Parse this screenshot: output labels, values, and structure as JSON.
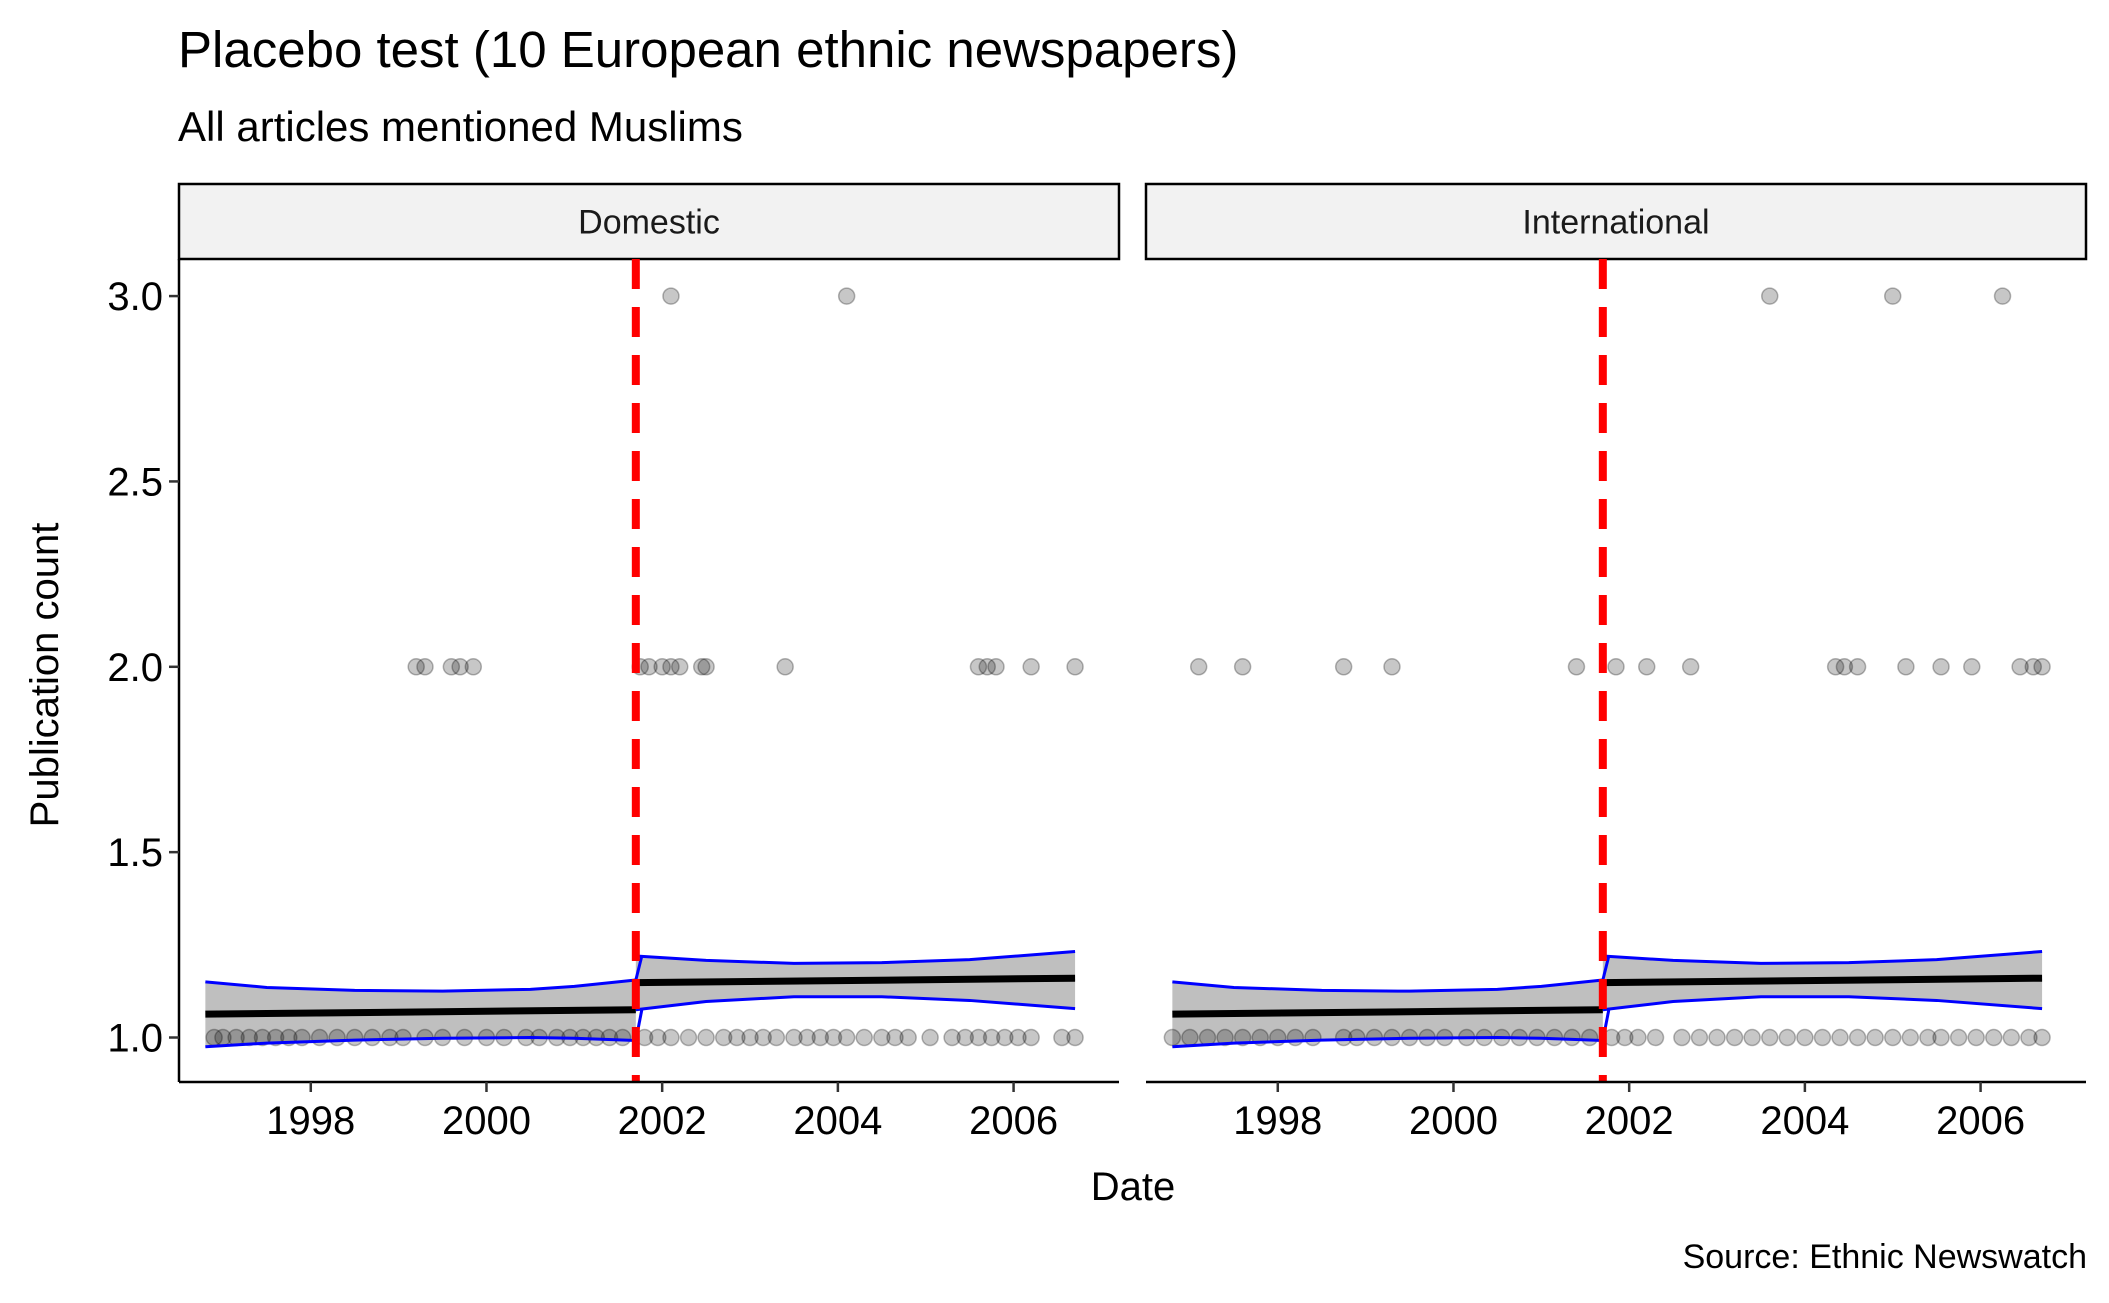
{
  "chart_data": {
    "type": "scatter",
    "title": "Placebo test (10 European ethnic newspapers)",
    "subtitle": "All articles mentioned Muslims",
    "caption": "Source: Ethnic Newswatch",
    "xlabel": "Date",
    "ylabel": "Publication count",
    "xlim": [
      1996.5,
      2007.2
    ],
    "ylim": [
      0.88,
      3.1
    ],
    "x_ticks": [
      1998,
      2000,
      2002,
      2004,
      2006
    ],
    "y_ticks": [
      1.0,
      1.5,
      2.0,
      2.5,
      3.0
    ],
    "y_tick_labels": [
      "1.0",
      "1.5",
      "2.0",
      "2.5",
      "3.0"
    ],
    "cutoff_x": 2001.7,
    "colors": {
      "points": "#000000",
      "cutoff_line": "#ff0000",
      "ribbon_fill": "#bfbfbf",
      "ribbon_border": "#0000ff",
      "fit_line": "#000000",
      "strip_fill": "#f2f2f2"
    },
    "panels": [
      {
        "name": "Domestic",
        "points": [
          {
            "x": 2002.1,
            "y": 3
          },
          {
            "x": 2004.1,
            "y": 3
          },
          {
            "x": 1999.2,
            "y": 2
          },
          {
            "x": 1999.3,
            "y": 2
          },
          {
            "x": 1999.6,
            "y": 2
          },
          {
            "x": 1999.7,
            "y": 2
          },
          {
            "x": 1999.85,
            "y": 2
          },
          {
            "x": 2001.75,
            "y": 2
          },
          {
            "x": 2001.85,
            "y": 2
          },
          {
            "x": 2002.0,
            "y": 2
          },
          {
            "x": 2002.1,
            "y": 2
          },
          {
            "x": 2002.2,
            "y": 2
          },
          {
            "x": 2002.45,
            "y": 2
          },
          {
            "x": 2002.5,
            "y": 2
          },
          {
            "x": 2003.4,
            "y": 2
          },
          {
            "x": 2005.6,
            "y": 2
          },
          {
            "x": 2005.7,
            "y": 2
          },
          {
            "x": 2005.8,
            "y": 2
          },
          {
            "x": 2006.2,
            "y": 2
          },
          {
            "x": 2006.7,
            "y": 2
          },
          {
            "x": 1996.9,
            "y": 1
          },
          {
            "x": 1997.0,
            "y": 1
          },
          {
            "x": 1997.15,
            "y": 1
          },
          {
            "x": 1997.3,
            "y": 1
          },
          {
            "x": 1997.45,
            "y": 1
          },
          {
            "x": 1997.6,
            "y": 1
          },
          {
            "x": 1997.75,
            "y": 1
          },
          {
            "x": 1997.9,
            "y": 1
          },
          {
            "x": 1998.1,
            "y": 1
          },
          {
            "x": 1998.3,
            "y": 1
          },
          {
            "x": 1998.5,
            "y": 1
          },
          {
            "x": 1998.7,
            "y": 1
          },
          {
            "x": 1998.9,
            "y": 1
          },
          {
            "x": 1999.05,
            "y": 1
          },
          {
            "x": 1999.3,
            "y": 1
          },
          {
            "x": 1999.5,
            "y": 1
          },
          {
            "x": 1999.75,
            "y": 1
          },
          {
            "x": 2000.0,
            "y": 1
          },
          {
            "x": 2000.2,
            "y": 1
          },
          {
            "x": 2000.45,
            "y": 1
          },
          {
            "x": 2000.6,
            "y": 1
          },
          {
            "x": 2000.8,
            "y": 1
          },
          {
            "x": 2000.95,
            "y": 1
          },
          {
            "x": 2001.1,
            "y": 1
          },
          {
            "x": 2001.25,
            "y": 1
          },
          {
            "x": 2001.4,
            "y": 1
          },
          {
            "x": 2001.55,
            "y": 1
          },
          {
            "x": 2001.8,
            "y": 1
          },
          {
            "x": 2001.95,
            "y": 1
          },
          {
            "x": 2002.1,
            "y": 1
          },
          {
            "x": 2002.3,
            "y": 1
          },
          {
            "x": 2002.5,
            "y": 1
          },
          {
            "x": 2002.7,
            "y": 1
          },
          {
            "x": 2002.85,
            "y": 1
          },
          {
            "x": 2003.0,
            "y": 1
          },
          {
            "x": 2003.15,
            "y": 1
          },
          {
            "x": 2003.3,
            "y": 1
          },
          {
            "x": 2003.5,
            "y": 1
          },
          {
            "x": 2003.65,
            "y": 1
          },
          {
            "x": 2003.8,
            "y": 1
          },
          {
            "x": 2003.95,
            "y": 1
          },
          {
            "x": 2004.1,
            "y": 1
          },
          {
            "x": 2004.3,
            "y": 1
          },
          {
            "x": 2004.5,
            "y": 1
          },
          {
            "x": 2004.65,
            "y": 1
          },
          {
            "x": 2004.8,
            "y": 1
          },
          {
            "x": 2005.05,
            "y": 1
          },
          {
            "x": 2005.3,
            "y": 1
          },
          {
            "x": 2005.45,
            "y": 1
          },
          {
            "x": 2005.6,
            "y": 1
          },
          {
            "x": 2005.75,
            "y": 1
          },
          {
            "x": 2005.9,
            "y": 1
          },
          {
            "x": 2006.05,
            "y": 1
          },
          {
            "x": 2006.2,
            "y": 1
          },
          {
            "x": 2006.55,
            "y": 1
          },
          {
            "x": 2006.7,
            "y": 1
          }
        ],
        "fit_pre": {
          "x": [
            1996.8,
            2001.7
          ],
          "y": [
            1.063,
            1.075
          ]
        },
        "fit_post": {
          "x": [
            2001.7,
            2006.7
          ],
          "y": [
            1.148,
            1.16
          ]
        },
        "ribbon_pre": {
          "x": [
            1996.8,
            1997.5,
            1998.5,
            1999.5,
            2000.5,
            2001.0,
            2001.7
          ],
          "upper": [
            1.15,
            1.135,
            1.127,
            1.125,
            1.13,
            1.138,
            1.155
          ],
          "lower": [
            0.975,
            0.985,
            0.993,
            0.998,
            1.0,
            0.998,
            0.992
          ]
        },
        "ribbon_post": {
          "x": [
            2001.7,
            2002.5,
            2003.5,
            2004.5,
            2005.5,
            2006.7
          ],
          "upper": [
            1.22,
            1.208,
            1.2,
            1.202,
            1.21,
            1.232
          ],
          "lower": [
            1.075,
            1.097,
            1.11,
            1.11,
            1.1,
            1.078
          ]
        }
      },
      {
        "name": "International",
        "points": [
          {
            "x": 2003.6,
            "y": 3
          },
          {
            "x": 2005.0,
            "y": 3
          },
          {
            "x": 2006.25,
            "y": 3
          },
          {
            "x": 1997.1,
            "y": 2
          },
          {
            "x": 1997.6,
            "y": 2
          },
          {
            "x": 1998.75,
            "y": 2
          },
          {
            "x": 1999.3,
            "y": 2
          },
          {
            "x": 2001.4,
            "y": 2
          },
          {
            "x": 2001.85,
            "y": 2
          },
          {
            "x": 2002.2,
            "y": 2
          },
          {
            "x": 2002.7,
            "y": 2
          },
          {
            "x": 2004.35,
            "y": 2
          },
          {
            "x": 2004.45,
            "y": 2
          },
          {
            "x": 2004.6,
            "y": 2
          },
          {
            "x": 2005.15,
            "y": 2
          },
          {
            "x": 2005.55,
            "y": 2
          },
          {
            "x": 2005.9,
            "y": 2
          },
          {
            "x": 2006.45,
            "y": 2
          },
          {
            "x": 2006.6,
            "y": 2
          },
          {
            "x": 2006.7,
            "y": 2
          },
          {
            "x": 1996.8,
            "y": 1
          },
          {
            "x": 1997.0,
            "y": 1
          },
          {
            "x": 1997.2,
            "y": 1
          },
          {
            "x": 1997.4,
            "y": 1
          },
          {
            "x": 1997.6,
            "y": 1
          },
          {
            "x": 1997.8,
            "y": 1
          },
          {
            "x": 1998.0,
            "y": 1
          },
          {
            "x": 1998.2,
            "y": 1
          },
          {
            "x": 1998.4,
            "y": 1
          },
          {
            "x": 1998.75,
            "y": 1
          },
          {
            "x": 1998.9,
            "y": 1
          },
          {
            "x": 1999.1,
            "y": 1
          },
          {
            "x": 1999.3,
            "y": 1
          },
          {
            "x": 1999.5,
            "y": 1
          },
          {
            "x": 1999.7,
            "y": 1
          },
          {
            "x": 1999.9,
            "y": 1
          },
          {
            "x": 2000.15,
            "y": 1
          },
          {
            "x": 2000.35,
            "y": 1
          },
          {
            "x": 2000.55,
            "y": 1
          },
          {
            "x": 2000.75,
            "y": 1
          },
          {
            "x": 2000.95,
            "y": 1
          },
          {
            "x": 2001.15,
            "y": 1
          },
          {
            "x": 2001.35,
            "y": 1
          },
          {
            "x": 2001.55,
            "y": 1
          },
          {
            "x": 2001.8,
            "y": 1
          },
          {
            "x": 2001.95,
            "y": 1
          },
          {
            "x": 2002.1,
            "y": 1
          },
          {
            "x": 2002.3,
            "y": 1
          },
          {
            "x": 2002.6,
            "y": 1
          },
          {
            "x": 2002.8,
            "y": 1
          },
          {
            "x": 2003.0,
            "y": 1
          },
          {
            "x": 2003.2,
            "y": 1
          },
          {
            "x": 2003.4,
            "y": 1
          },
          {
            "x": 2003.6,
            "y": 1
          },
          {
            "x": 2003.8,
            "y": 1
          },
          {
            "x": 2004.0,
            "y": 1
          },
          {
            "x": 2004.2,
            "y": 1
          },
          {
            "x": 2004.4,
            "y": 1
          },
          {
            "x": 2004.6,
            "y": 1
          },
          {
            "x": 2004.8,
            "y": 1
          },
          {
            "x": 2005.0,
            "y": 1
          },
          {
            "x": 2005.2,
            "y": 1
          },
          {
            "x": 2005.4,
            "y": 1
          },
          {
            "x": 2005.55,
            "y": 1
          },
          {
            "x": 2005.75,
            "y": 1
          },
          {
            "x": 2005.95,
            "y": 1
          },
          {
            "x": 2006.15,
            "y": 1
          },
          {
            "x": 2006.35,
            "y": 1
          },
          {
            "x": 2006.55,
            "y": 1
          },
          {
            "x": 2006.7,
            "y": 1
          }
        ],
        "fit_pre": {
          "x": [
            1996.8,
            2001.7
          ],
          "y": [
            1.063,
            1.075
          ]
        },
        "fit_post": {
          "x": [
            2001.7,
            2006.7
          ],
          "y": [
            1.148,
            1.16
          ]
        },
        "ribbon_pre": {
          "x": [
            1996.8,
            1997.5,
            1998.5,
            1999.5,
            2000.5,
            2001.0,
            2001.7
          ],
          "upper": [
            1.15,
            1.135,
            1.127,
            1.125,
            1.13,
            1.138,
            1.155
          ],
          "lower": [
            0.975,
            0.985,
            0.993,
            0.998,
            1.0,
            0.998,
            0.992
          ]
        },
        "ribbon_post": {
          "x": [
            2001.7,
            2002.5,
            2003.5,
            2004.5,
            2005.5,
            2006.7
          ],
          "upper": [
            1.22,
            1.208,
            1.2,
            1.202,
            1.21,
            1.232
          ],
          "lower": [
            1.075,
            1.097,
            1.11,
            1.11,
            1.1,
            1.078
          ]
        }
      }
    ]
  }
}
